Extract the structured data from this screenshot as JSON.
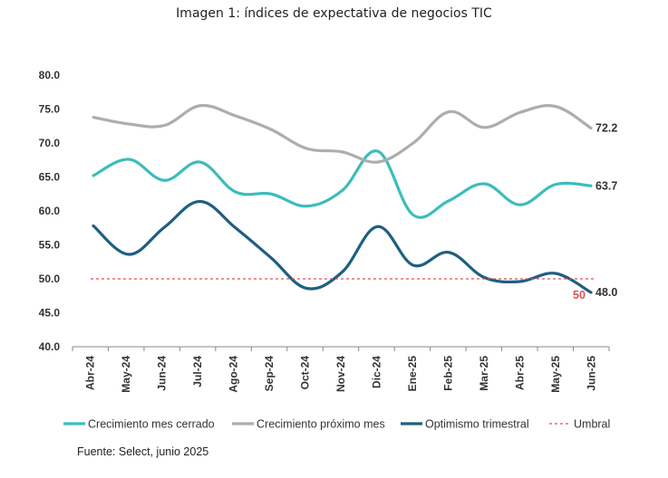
{
  "title": "Imagen 1: índices de expectativa de negocios TIC",
  "source": "Fuente: Select, junio 2025",
  "chart_data": {
    "type": "line",
    "title": "Imagen 1: índices de expectativa de negocios TIC",
    "categories": [
      "Abr-24",
      "May-24",
      "Jun-24",
      "Jul-24",
      "Ago-24",
      "Sep-24",
      "Oct-24",
      "Nov-24",
      "Dic-24",
      "Ene-25",
      "Feb-25",
      "Mar-25",
      "Abr-25",
      "May-25",
      "Jun-25"
    ],
    "ylim": [
      40,
      80
    ],
    "yticks": [
      "80.0",
      "75.0",
      "70.0",
      "65.0",
      "60.0",
      "55.0",
      "50.0",
      "45.0",
      "40.0"
    ],
    "grid": false,
    "legend_position": "bottom",
    "series": [
      {
        "name": "Crecimiento mes cerrado",
        "color": "#3dbcbc",
        "values": [
          65.2,
          67.6,
          64.5,
          67.2,
          62.8,
          62.5,
          60.7,
          63.0,
          68.8,
          59.4,
          61.5,
          64.0,
          60.9,
          63.9,
          63.7
        ],
        "end_label": "63.7"
      },
      {
        "name": "Crecimiento próximo mes",
        "color": "#adadad",
        "values": [
          73.8,
          72.8,
          72.6,
          75.5,
          74.0,
          72.0,
          69.2,
          68.7,
          67.2,
          70.0,
          74.6,
          72.3,
          74.5,
          75.4,
          72.2
        ],
        "end_label": "72.2"
      },
      {
        "name": "Optimismo trimestral",
        "color": "#1f5f80",
        "values": [
          57.8,
          53.6,
          57.6,
          61.4,
          57.5,
          53.1,
          48.6,
          51.0,
          57.7,
          52.0,
          53.9,
          50.2,
          49.6,
          50.8,
          48.0
        ],
        "end_label": "48.0"
      },
      {
        "name": "Umbral",
        "color": "#e05050",
        "values": [
          50,
          50,
          50,
          50,
          50,
          50,
          50,
          50,
          50,
          50,
          50,
          50,
          50,
          50,
          50
        ],
        "dashed": true,
        "end_label": "50"
      }
    ]
  }
}
